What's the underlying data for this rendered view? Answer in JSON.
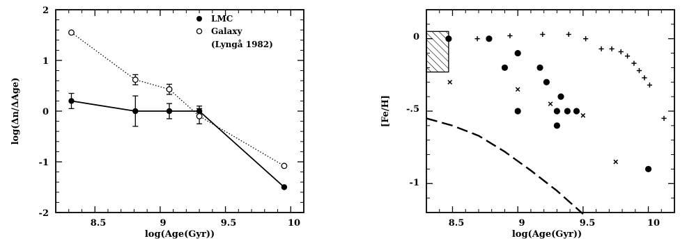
{
  "chart_data": [
    {
      "type": "line",
      "xlabel": "log(Age(Gyr))",
      "ylabel": "log(Δn/ΔAge)",
      "xlim": [
        8.2,
        10.1
      ],
      "ylim": [
        -2,
        2
      ],
      "xticks": [
        "8.5",
        "9",
        "9.5",
        "10"
      ],
      "yticks": [
        "-2",
        "-1",
        "0",
        "1",
        "2"
      ],
      "legend": {
        "placement": "top-right",
        "entries": [
          {
            "marker": "filled-circle",
            "text": "LMC"
          },
          {
            "marker": "open-circle",
            "text": "Galaxy"
          },
          {
            "marker": "none",
            "text": "(Lyngå 1982)"
          }
        ]
      },
      "series": [
        {
          "name": "LMC",
          "line": "solid",
          "marker": "filled-circle",
          "x": [
            8.32,
            8.81,
            9.07,
            9.3,
            9.95
          ],
          "y": [
            0.2,
            0.0,
            0.0,
            0.0,
            -1.5
          ],
          "err": [
            0.15,
            0.3,
            0.15,
            0.1,
            0
          ]
        },
        {
          "name": "Galaxy",
          "line": "dotted",
          "marker": "open-circle",
          "x": [
            8.32,
            8.81,
            9.07,
            9.3,
            9.95
          ],
          "y": [
            1.55,
            0.62,
            0.43,
            -0.1,
            -1.08
          ],
          "err": [
            0,
            0.1,
            0.1,
            0.15,
            0
          ]
        }
      ]
    },
    {
      "type": "scatter",
      "xlabel": "log(Age(Gyr))",
      "ylabel": "[Fe/H]",
      "xlim": [
        8.3,
        10.2
      ],
      "ylim": [
        -1.2,
        0.2
      ],
      "xticks": [
        "8.5",
        "9",
        "9.5",
        "10"
      ],
      "yticks": [
        "0",
        "-.5",
        "-1"
      ],
      "series": [
        {
          "marker": "filled-circle",
          "x": [
            8.47,
            8.78,
            8.9,
            9.0,
            9.0,
            9.17,
            9.22,
            9.3,
            9.3,
            9.33,
            9.38,
            9.45,
            10.0
          ],
          "y": [
            0.0,
            0.0,
            -0.2,
            -0.1,
            -0.5,
            -0.2,
            -0.3,
            -0.5,
            -0.6,
            -0.4,
            -0.5,
            -0.5,
            -0.9
          ]
        },
        {
          "marker": "cross",
          "x": [
            8.48,
            9.0,
            9.25,
            9.5,
            9.75
          ],
          "y": [
            -0.3,
            -0.35,
            -0.45,
            -0.53,
            -0.85
          ]
        },
        {
          "marker": "plus",
          "x": [
            8.69,
            8.94,
            9.19,
            9.39,
            9.52,
            9.64,
            9.72,
            9.79,
            9.84,
            9.89,
            9.93,
            9.97,
            10.01,
            10.12
          ],
          "y": [
            0.0,
            0.02,
            0.03,
            0.03,
            0.0,
            -0.07,
            -0.07,
            -0.09,
            -0.12,
            -0.17,
            -0.22,
            -0.27,
            -0.32,
            -0.55
          ]
        },
        {
          "line": "dashed",
          "x": [
            8.3,
            8.5,
            8.7,
            8.9,
            9.1,
            9.3,
            9.5
          ],
          "y": [
            -0.55,
            -0.6,
            -0.67,
            -0.78,
            -0.91,
            -1.05,
            -1.21
          ]
        }
      ],
      "annotations": [
        {
          "shape": "hatched-box",
          "x": [
            8.3,
            8.47
          ],
          "y": [
            -0.23,
            0.05
          ]
        }
      ]
    }
  ]
}
